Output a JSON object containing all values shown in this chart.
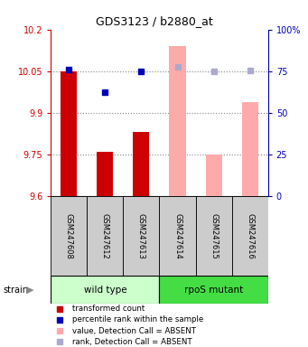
{
  "title": "GDS3123 / b2880_at",
  "samples": [
    "GSM247608",
    "GSM247612",
    "GSM247613",
    "GSM247614",
    "GSM247615",
    "GSM247616"
  ],
  "ylim_left": [
    9.6,
    10.2
  ],
  "ylim_right": [
    0,
    100
  ],
  "yticks_left": [
    9.6,
    9.75,
    9.9,
    10.05,
    10.2
  ],
  "ytick_labels_left": [
    "9.6",
    "9.75",
    "9.9",
    "10.05",
    "10.2"
  ],
  "yticks_right": [
    0,
    25,
    50,
    75,
    100
  ],
  "ytick_labels_right": [
    "0",
    "25",
    "50",
    "75",
    "100%"
  ],
  "red_bars": [
    10.05,
    9.76,
    9.83,
    null,
    null,
    null
  ],
  "pink_bars": [
    null,
    null,
    null,
    10.14,
    9.75,
    9.94
  ],
  "blue_squares": [
    10.057,
    9.975,
    10.048,
    null,
    null,
    null
  ],
  "lavender_squares": [
    null,
    null,
    null,
    10.065,
    10.048,
    10.052
  ],
  "bar_bottom": 9.6,
  "left_color": "#cc0000",
  "pink_color": "#ffaaaa",
  "blue_color": "#0000bb",
  "lavender_color": "#aaaacc",
  "grid_color": "#888888",
  "bg_color": "#cccccc",
  "group_bg_wild": "#ccffcc",
  "group_bg_rpos": "#44dd44",
  "marker_size": 5,
  "bar_width": 0.45
}
